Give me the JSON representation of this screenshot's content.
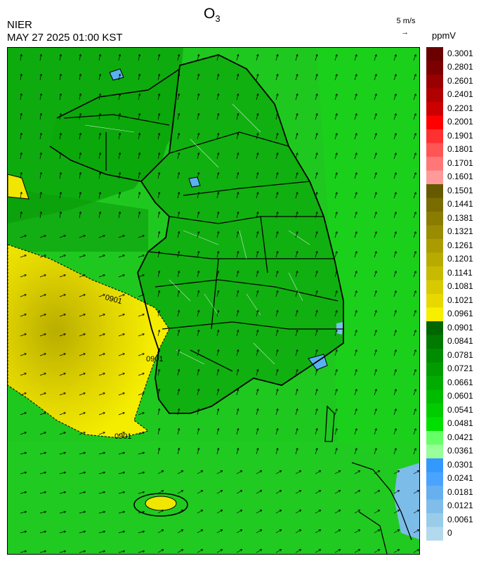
{
  "header": {
    "agency": "NIER",
    "datetime": "MAY 27 2025 01:00 KST",
    "title_main": "O",
    "title_sub": "3",
    "wind_reference": "5 m/s",
    "wind_arrow_glyph": "→",
    "unit": "ppmV"
  },
  "map": {
    "contour_labels": [
      "0901",
      "0901",
      "0901"
    ],
    "wind_direction": "mostly northward (south-southwesterly flow) over land and sea, westerly/southwesterly over the Yellow Sea"
  },
  "legend": {
    "labels": [
      "0.3001",
      "0.2801",
      "0.2601",
      "0.2401",
      "0.2201",
      "0.2001",
      "0.1901",
      "0.1801",
      "0.1701",
      "0.1601",
      "0.1501",
      "0.1441",
      "0.1381",
      "0.1321",
      "0.1261",
      "0.1201",
      "0.1141",
      "0.1081",
      "0.1021",
      "0.0961",
      "0.0901",
      "0.0841",
      "0.0781",
      "0.0721",
      "0.0661",
      "0.0601",
      "0.0541",
      "0.0481",
      "0.0421",
      "0.0361",
      "0.0301",
      "0.0241",
      "0.0181",
      "0.0121",
      "0.0061",
      "0"
    ],
    "colors": [
      "#6b0000",
      "#7d0000",
      "#990000",
      "#b00000",
      "#cc0000",
      "#ff0000",
      "#ff3030",
      "#ff5555",
      "#ff7777",
      "#ff9a9a",
      "#665a00",
      "#7a6c00",
      "#8a7c00",
      "#9a8c00",
      "#aa9c00",
      "#b8ab00",
      "#c8ba00",
      "#d8c900",
      "#e8d800",
      "#f8ef00",
      "#006600",
      "#007a00",
      "#008c00",
      "#009c00",
      "#00ac00",
      "#00bc00",
      "#00cc00",
      "#00e000",
      "#66ff66",
      "#99ff99",
      "#3399ff",
      "#4aa3ff",
      "#66b0ef",
      "#80bdea",
      "#99cce8",
      "#b3d9ee"
    ]
  }
}
